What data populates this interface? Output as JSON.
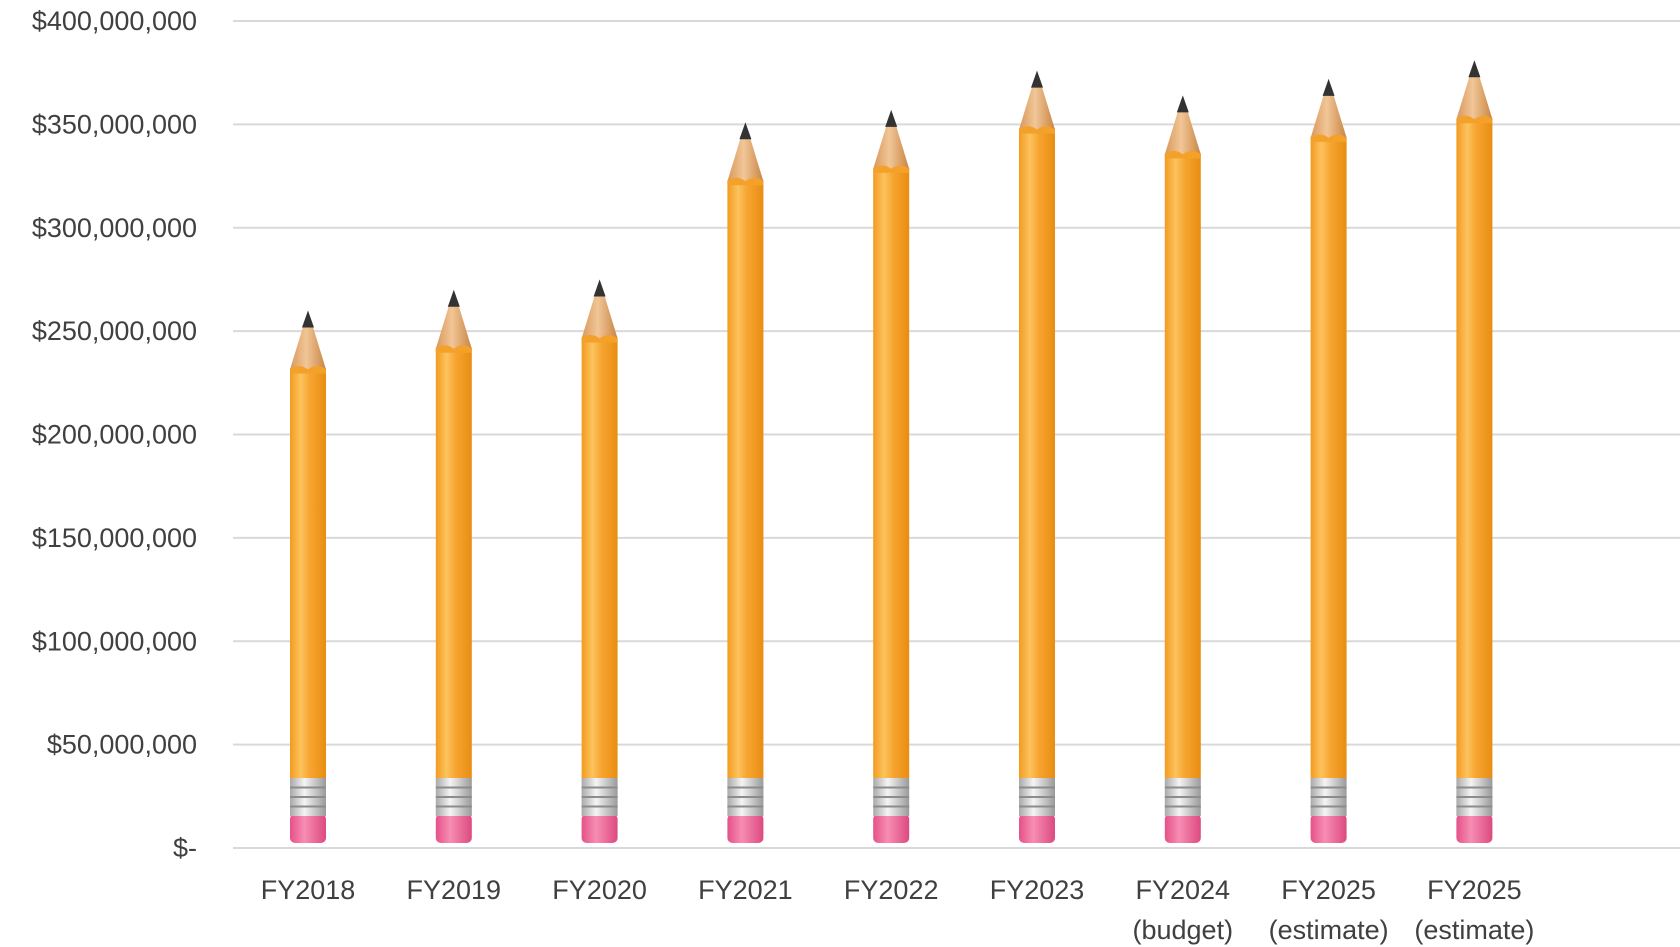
{
  "chart_data": {
    "type": "bar",
    "title": "",
    "xlabel": "",
    "ylabel": "",
    "ylim": [
      0,
      400000000
    ],
    "grid": true,
    "y_ticks": [
      {
        "value": 0,
        "label": "$-"
      },
      {
        "value": 50000000,
        "label": "$50,000,000"
      },
      {
        "value": 100000000,
        "label": "$100,000,000"
      },
      {
        "value": 150000000,
        "label": "$150,000,000"
      },
      {
        "value": 200000000,
        "label": "$200,000,000"
      },
      {
        "value": 250000000,
        "label": "$250,000,000"
      },
      {
        "value": 300000000,
        "label": "$300,000,000"
      },
      {
        "value": 350000000,
        "label": "$350,000,000"
      },
      {
        "value": 400000000,
        "label": "$400,000,000"
      }
    ],
    "categories": [
      [
        "FY2018"
      ],
      [
        "FY2019"
      ],
      [
        "FY2020"
      ],
      [
        "FY2021"
      ],
      [
        "FY2022"
      ],
      [
        "FY2023"
      ],
      [
        "FY2024",
        "(budget)"
      ],
      [
        "FY2025",
        "(estimate)"
      ],
      [
        "FY2025",
        "(estimate)"
      ]
    ],
    "values": [
      260000000,
      270000000,
      275000000,
      351000000,
      357000000,
      376000000,
      364000000,
      372000000,
      381000000
    ],
    "colors": {
      "pencil_body": "#f7a531",
      "pencil_highlight": "#fcc35e",
      "pencil_shadow": "#e88d12",
      "wood": "#e6b27a",
      "graphite": "#333333",
      "ferrule": "#cfcfcf",
      "eraser": "#f06b9a",
      "grid": "#d9d9d9",
      "text": "#404040"
    }
  }
}
